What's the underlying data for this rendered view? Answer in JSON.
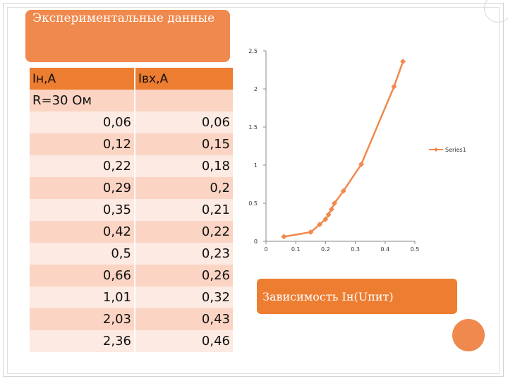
{
  "title": "Экспериментальные данные",
  "table": {
    "headers": [
      "Iн,А",
      "Iвх,А"
    ],
    "subheader": "R=30 Ом",
    "rows": [
      [
        "0,06",
        "0,06"
      ],
      [
        "0,12",
        "0,15"
      ],
      [
        "0,22",
        "0,18"
      ],
      [
        "0,29",
        "0,2"
      ],
      [
        "0,35",
        "0,21"
      ],
      [
        "0,42",
        "0,22"
      ],
      [
        "0,5",
        "0,23"
      ],
      [
        "0,66",
        "0,26"
      ],
      [
        "1,01",
        "0,32"
      ],
      [
        "2,03",
        "0,43"
      ],
      [
        "2,36",
        "0,46"
      ]
    ]
  },
  "caption": "Зависимость Iн(Uпит)",
  "colors": {
    "accent": "#ed7d31",
    "title_box": "#f0894d",
    "row_odd": "#fbd4c3",
    "row_even": "#fdeae2",
    "series": "#f0894d"
  },
  "chart_data": {
    "type": "scatter",
    "title": "",
    "xlabel": "",
    "ylabel": "",
    "xlim": [
      0,
      0.5
    ],
    "ylim": [
      0,
      2.5
    ],
    "xticks": [
      0,
      0.1,
      0.2,
      0.3,
      0.4,
      0.5
    ],
    "yticks": [
      0,
      0.5,
      1,
      1.5,
      2,
      2.5
    ],
    "grid": false,
    "legend": "right",
    "series": [
      {
        "name": "Series1",
        "x": [
          0.06,
          0.15,
          0.18,
          0.2,
          0.21,
          0.22,
          0.23,
          0.26,
          0.32,
          0.43,
          0.46
        ],
        "y": [
          0.06,
          0.12,
          0.22,
          0.29,
          0.35,
          0.42,
          0.5,
          0.66,
          1.01,
          2.03,
          2.36
        ]
      }
    ]
  }
}
